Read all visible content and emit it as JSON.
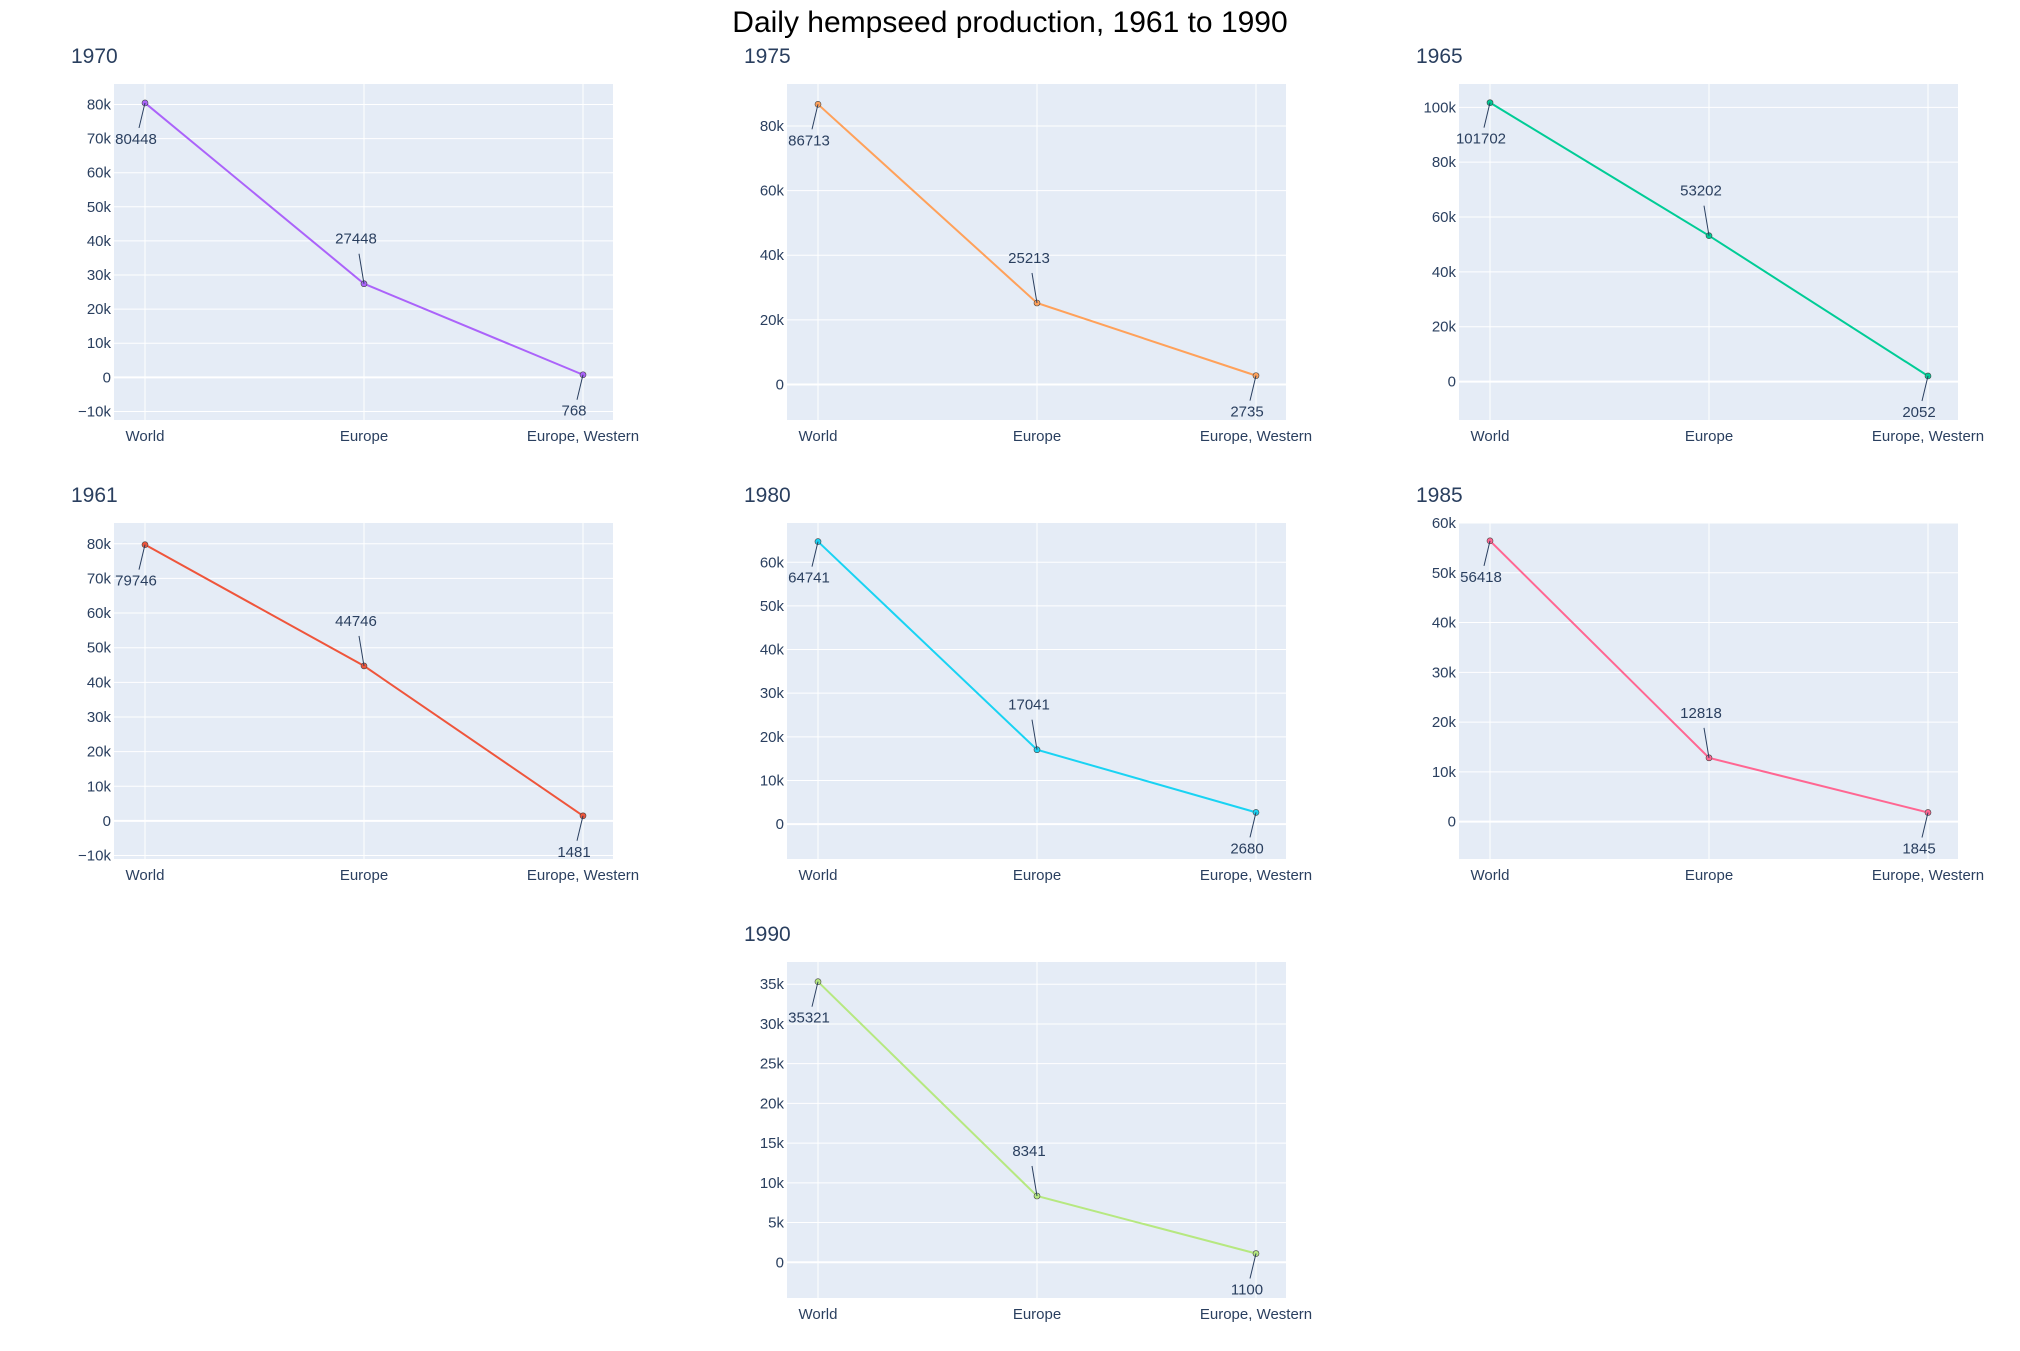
{
  "chart_data": {
    "title": "Daily hempseed production, 1961 to 1990",
    "type": "line",
    "categories": [
      "World",
      "Europe",
      "Europe, Western"
    ],
    "colors": {
      "plot_bg": "#E5ECF6",
      "grid": "#ffffff",
      "text": "#2a3f5f",
      "title": "#000000"
    },
    "panels": [
      {
        "year": "1970",
        "color": "#AB63FA",
        "values": [
          80448,
          27448,
          768
        ],
        "ylim": [
          -12500,
          86000
        ],
        "ticks": [
          -10000,
          0,
          10000,
          20000,
          30000,
          40000,
          50000,
          60000,
          70000,
          80000
        ],
        "tick_labels": [
          "−10k",
          "0",
          "10k",
          "20k",
          "30k",
          "40k",
          "50k",
          "60k",
          "70k",
          "80k"
        ]
      },
      {
        "year": "1975",
        "color": "#FFA15A",
        "values": [
          86713,
          25213,
          2735
        ],
        "ylim": [
          -11000,
          93000
        ],
        "ticks": [
          0,
          20000,
          40000,
          60000,
          80000
        ],
        "tick_labels": [
          "0",
          "20k",
          "40k",
          "60k",
          "80k"
        ]
      },
      {
        "year": "1965",
        "color": "#00CC96",
        "values": [
          101702,
          53202,
          2052
        ],
        "ylim": [
          -14000,
          108500
        ],
        "ticks": [
          0,
          20000,
          40000,
          60000,
          80000,
          100000
        ],
        "tick_labels": [
          "0",
          "20k",
          "40k",
          "60k",
          "80k",
          "100k"
        ]
      },
      {
        "year": "1961",
        "color": "#EF553B",
        "values": [
          79746,
          44746,
          1481
        ],
        "ylim": [
          -11000,
          86000
        ],
        "ticks": [
          -10000,
          0,
          10000,
          20000,
          30000,
          40000,
          50000,
          60000,
          70000,
          80000
        ],
        "tick_labels": [
          "−10k",
          "0",
          "10k",
          "20k",
          "30k",
          "40k",
          "50k",
          "60k",
          "70k",
          "80k"
        ]
      },
      {
        "year": "1980",
        "color": "#19D3F3",
        "values": [
          64741,
          17041,
          2680
        ],
        "ylim": [
          -8000,
          69000
        ],
        "ticks": [
          0,
          10000,
          20000,
          30000,
          40000,
          50000,
          60000
        ],
        "tick_labels": [
          "0",
          "10k",
          "20k",
          "30k",
          "40k",
          "50k",
          "60k"
        ]
      },
      {
        "year": "1985",
        "color": "#FF6692",
        "values": [
          56418,
          12818,
          1845
        ],
        "ylim": [
          -7500,
          60000
        ],
        "ticks": [
          0,
          10000,
          20000,
          30000,
          40000,
          50000,
          60000
        ],
        "tick_labels": [
          "0",
          "10k",
          "20k",
          "30k",
          "40k",
          "50k",
          "60k"
        ]
      },
      {
        "year": "1990",
        "color": "#B6E880",
        "values": [
          35321,
          8341,
          1100
        ],
        "ylim": [
          -4500,
          37800
        ],
        "ticks": [
          0,
          5000,
          10000,
          15000,
          20000,
          25000,
          30000,
          35000
        ],
        "tick_labels": [
          "0",
          "5k",
          "10k",
          "15k",
          "20k",
          "25k",
          "30k",
          "35k"
        ]
      }
    ]
  }
}
